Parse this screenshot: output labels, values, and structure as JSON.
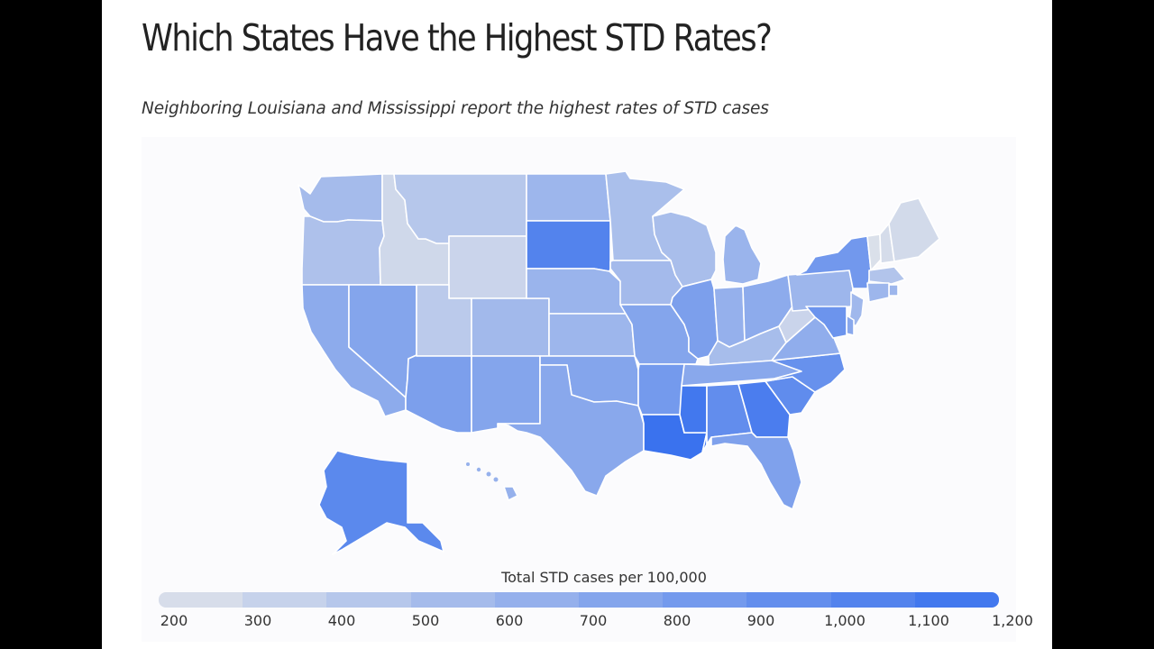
{
  "title": "Which States Have the Highest STD Rates?",
  "subtitle": "Neighboring Louisiana and Mississippi report the highest rates of STD cases",
  "legend": {
    "title": "Total STD cases per 100,000",
    "ticks": [
      "200",
      "300",
      "400",
      "500",
      "600",
      "700",
      "800",
      "900",
      "1,000",
      "1,100",
      "1,200"
    ],
    "min": 200,
    "max": 1200,
    "color_low": "#dfe3ea",
    "color_high": "#3a72ee"
  },
  "chart_data": {
    "type": "choropleth",
    "title": "Which States Have the Highest STD Rates?",
    "subtitle": "Neighboring Louisiana and Mississippi report the highest rates of STD cases",
    "metric": "Total STD cases per 100,000",
    "scale": [
      200,
      1200
    ],
    "states": {
      "WA": 550,
      "OR": 500,
      "CA": 700,
      "NV": 750,
      "ID": 300,
      "MT": 450,
      "WY": 330,
      "UT": 420,
      "AZ": 800,
      "CO": 570,
      "NM": 750,
      "ND": 600,
      "SD": 1050,
      "NE": 620,
      "KS": 600,
      "OK": 750,
      "TX": 720,
      "MN": 520,
      "IA": 560,
      "MO": 750,
      "AR": 850,
      "LA": 1200,
      "WI": 530,
      "IL": 800,
      "MI": 620,
      "IN": 650,
      "OH": 700,
      "KY": 540,
      "TN": 720,
      "MS": 1150,
      "AL": 960,
      "GA": 1100,
      "FL": 780,
      "SC": 970,
      "NC": 930,
      "VA": 680,
      "WV": 330,
      "PA": 600,
      "NY": 860,
      "VT": 230,
      "NH": 260,
      "ME": 280,
      "MA": 470,
      "RI": 600,
      "CT": 600,
      "NJ": 580,
      "DE": 720,
      "MD": 900,
      "AK": 1000,
      "HI": 640
    }
  }
}
